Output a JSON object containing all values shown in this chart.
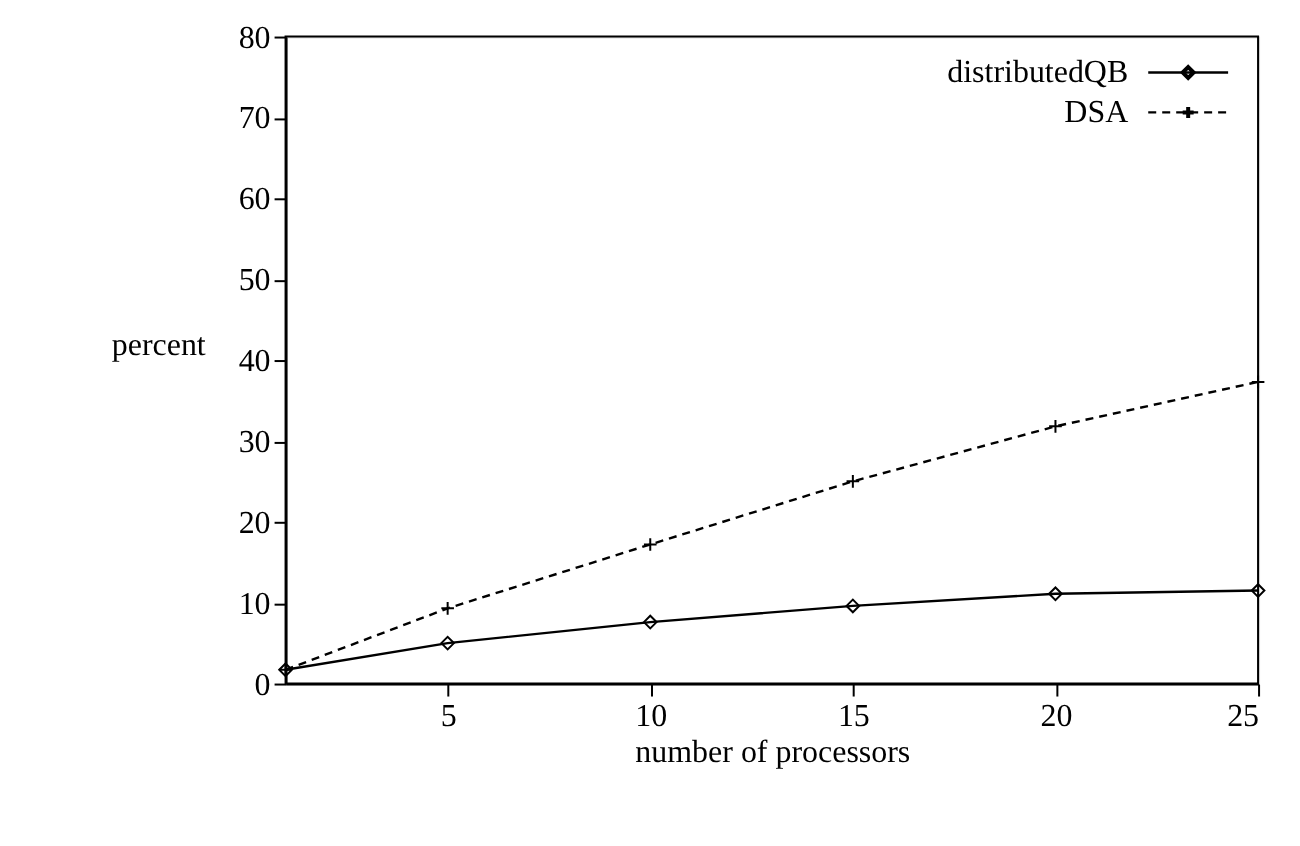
{
  "chart_data": {
    "type": "line",
    "xlabel": "number of processors",
    "ylabel": "percent",
    "x": [
      1,
      5,
      10,
      15,
      20,
      25
    ],
    "series": [
      {
        "name": "distributedQB",
        "color": "#000000",
        "values": [
          1.7,
          5.0,
          7.6,
          9.6,
          11.1,
          11.5
        ],
        "marker": "diamond",
        "line_style": "solid"
      },
      {
        "name": "DSA",
        "color": "#000000",
        "values": [
          1.7,
          9.3,
          17.2,
          25.0,
          31.8,
          37.3
        ],
        "marker": "cross",
        "line_style": "dashed"
      }
    ],
    "xlim": [
      1,
      25
    ],
    "xticks": [
      5,
      10,
      15,
      20,
      25
    ],
    "ylim": [
      0,
      80
    ],
    "yticks": [
      0,
      10,
      20,
      30,
      40,
      50,
      60,
      70,
      80
    ],
    "grid": false,
    "legend": "top right"
  }
}
